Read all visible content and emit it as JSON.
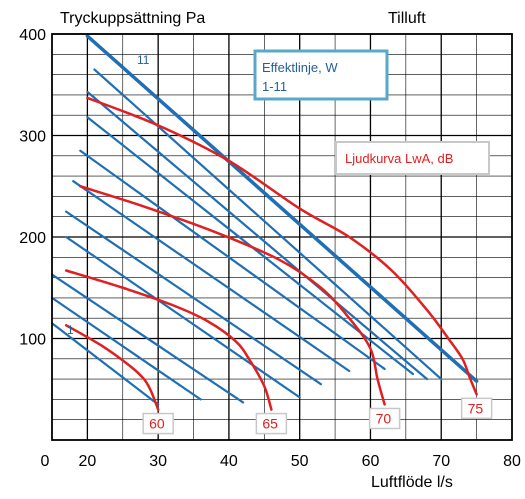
{
  "chart_data": {
    "type": "line",
    "title": "Tilluft",
    "ylabel": "Tryckuppsättning Pa",
    "xlabel": "Luftflöde l/s",
    "xlim": [
      0,
      80
    ],
    "ylim": [
      0,
      400
    ],
    "x_ticks": [
      "0",
      "20",
      "30",
      "40",
      "50",
      "60",
      "70",
      "80"
    ],
    "y_ticks": [
      "100",
      "200",
      "300",
      "400"
    ],
    "grid": true,
    "legend": [
      {
        "line1": "Effektlinje, W",
        "line2": "1-11",
        "color": "#1f6fb5"
      },
      {
        "line1": "Ljudkurva LwA, dB",
        "line2": "",
        "color": "#e02020"
      }
    ],
    "effect_line_labels": {
      "first": "1",
      "last": "11"
    },
    "effect_lines": [
      {
        "x": [
          15,
          30
        ],
        "y": [
          115,
          35
        ]
      },
      {
        "x": [
          15,
          36
        ],
        "y": [
          140,
          40
        ]
      },
      {
        "x": [
          15,
          42
        ],
        "y": [
          163,
          37
        ]
      },
      {
        "x": [
          17,
          50
        ],
        "y": [
          200,
          42
        ]
      },
      {
        "x": [
          17,
          53
        ],
        "y": [
          225,
          55
        ]
      },
      {
        "x": [
          18,
          57
        ],
        "y": [
          255,
          68
        ]
      },
      {
        "x": [
          19,
          62
        ],
        "y": [
          285,
          70
        ]
      },
      {
        "x": [
          20,
          66
        ],
        "y": [
          318,
          65
        ]
      },
      {
        "x": [
          20,
          68
        ],
        "y": [
          343,
          60
        ]
      },
      {
        "x": [
          21,
          70
        ],
        "y": [
          365,
          60
        ]
      },
      {
        "x": [
          20,
          75
        ],
        "y": [
          398,
          58
        ]
      }
    ],
    "sound_curves": [
      {
        "label": "60",
        "x": [
          17,
          22,
          26,
          28,
          29,
          30
        ],
        "y": [
          113,
          93,
          73,
          60,
          48,
          30
        ]
      },
      {
        "label": "65",
        "x": [
          17,
          25,
          32,
          37,
          41,
          43,
          45,
          46
        ],
        "y": [
          167,
          150,
          133,
          117,
          97,
          78,
          53,
          30
        ]
      },
      {
        "label": "70",
        "x": [
          19,
          28,
          38,
          47,
          53,
          57,
          60,
          61,
          62
        ],
        "y": [
          250,
          230,
          205,
          178,
          150,
          120,
          90,
          60,
          35
        ]
      },
      {
        "label": "75",
        "x": [
          20,
          30,
          40,
          50,
          57,
          63,
          68,
          71,
          73,
          74,
          75
        ],
        "y": [
          337,
          310,
          275,
          228,
          200,
          167,
          128,
          100,
          80,
          62,
          45
        ]
      }
    ]
  }
}
